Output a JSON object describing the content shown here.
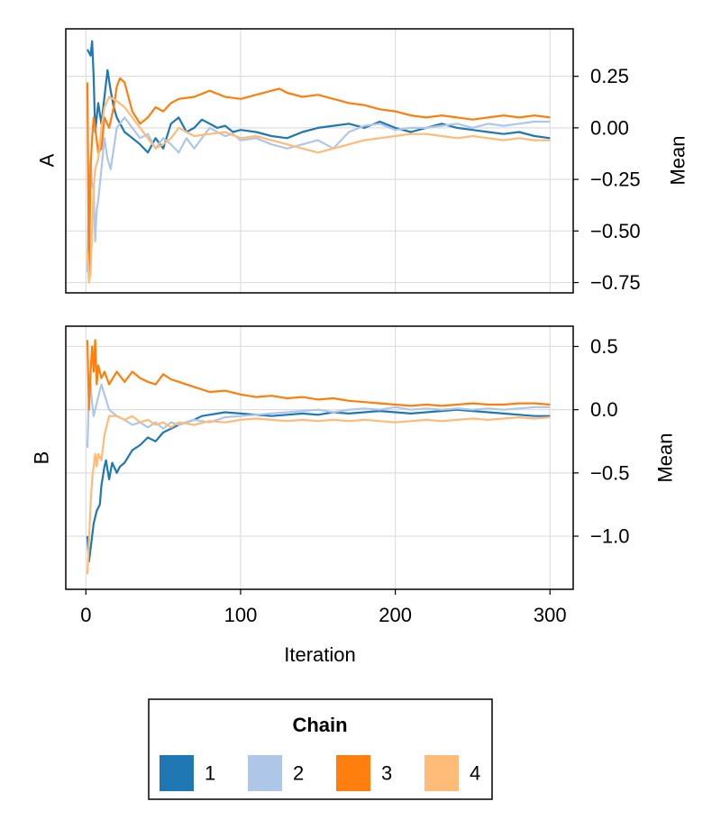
{
  "chart_data": {
    "type": "line",
    "xlabel": "Iteration",
    "x_ticks": [
      0,
      100,
      200,
      300
    ],
    "xlim": [
      -13,
      315
    ],
    "legend": {
      "title": "Chain",
      "placement": "bottom",
      "entries": [
        "1",
        "2",
        "3",
        "4"
      ]
    },
    "series_colors": {
      "1": "#1f77b4",
      "2": "#aec7e8",
      "3": "#ff7f0e",
      "4": "#ffbb78"
    },
    "grid": true,
    "panels": [
      {
        "panel_label": "A",
        "ylabel": "Mean",
        "ylim": [
          -0.8,
          0.48
        ],
        "y_ticks": [
          0.25,
          0.0,
          -0.25,
          -0.5,
          -0.75
        ],
        "y_tick_labels": [
          "0.25",
          "0.00",
          "−0.25",
          "−0.50",
          "−0.75"
        ],
        "series": [
          {
            "name": "1",
            "x": [
              1,
              3,
              4,
              5,
              6,
              8,
              10,
              12,
              14,
              16,
              18,
              20,
              25,
              30,
              35,
              40,
              45,
              50,
              55,
              60,
              65,
              70,
              75,
              80,
              85,
              90,
              95,
              100,
              110,
              120,
              130,
              140,
              150,
              160,
              170,
              180,
              190,
              200,
              210,
              220,
              230,
              240,
              250,
              260,
              270,
              280,
              290,
              300
            ],
            "y": [
              0.38,
              0.35,
              0.42,
              0.25,
              -0.02,
              0.12,
              0.02,
              0.15,
              0.28,
              0.18,
              0.1,
              0.05,
              -0.02,
              -0.05,
              -0.08,
              -0.12,
              -0.05,
              -0.1,
              0.02,
              0.05,
              -0.02,
              0.0,
              0.04,
              0.02,
              0.0,
              0.01,
              -0.02,
              -0.01,
              -0.02,
              -0.04,
              -0.05,
              -0.02,
              0.0,
              0.01,
              0.02,
              0.0,
              0.03,
              0.0,
              -0.02,
              0.0,
              0.02,
              0.0,
              -0.01,
              -0.02,
              -0.03,
              -0.02,
              -0.04,
              -0.05
            ]
          },
          {
            "name": "2",
            "x": [
              1,
              2,
              3,
              4,
              5,
              6,
              7,
              8,
              10,
              12,
              14,
              16,
              18,
              20,
              25,
              30,
              35,
              40,
              45,
              50,
              55,
              60,
              65,
              70,
              75,
              80,
              85,
              90,
              95,
              100,
              110,
              120,
              130,
              140,
              150,
              160,
              170,
              180,
              190,
              200,
              210,
              220,
              230,
              240,
              250,
              260,
              270,
              280,
              290,
              300
            ],
            "y": [
              -0.7,
              -0.3,
              -0.15,
              -0.28,
              -0.3,
              -0.55,
              -0.4,
              -0.35,
              -0.2,
              -0.05,
              -0.15,
              -0.2,
              -0.1,
              0.0,
              0.05,
              0.0,
              -0.05,
              -0.03,
              -0.1,
              -0.05,
              -0.08,
              -0.12,
              -0.05,
              -0.1,
              -0.05,
              0.0,
              -0.02,
              -0.04,
              -0.03,
              -0.06,
              -0.05,
              -0.08,
              -0.1,
              -0.08,
              -0.06,
              -0.1,
              -0.02,
              0.01,
              0.02,
              -0.01,
              0.0,
              0.0,
              0.01,
              0.02,
              0.0,
              0.02,
              0.01,
              0.02,
              0.03,
              0.03
            ]
          },
          {
            "name": "3",
            "x": [
              1,
              2,
              3,
              4,
              5,
              6,
              8,
              10,
              12,
              15,
              18,
              20,
              22,
              25,
              30,
              35,
              40,
              45,
              50,
              55,
              60,
              70,
              80,
              90,
              100,
              110,
              120,
              125,
              130,
              140,
              150,
              160,
              170,
              180,
              190,
              200,
              210,
              220,
              230,
              240,
              250,
              260,
              270,
              280,
              290,
              300
            ],
            "y": [
              0.22,
              -0.72,
              -0.2,
              -0.05,
              0.05,
              0.0,
              -0.12,
              -0.1,
              0.05,
              0.0,
              0.1,
              0.2,
              0.24,
              0.22,
              0.08,
              0.02,
              0.05,
              0.1,
              0.08,
              0.12,
              0.14,
              0.15,
              0.18,
              0.15,
              0.14,
              0.16,
              0.18,
              0.19,
              0.17,
              0.15,
              0.16,
              0.14,
              0.12,
              0.11,
              0.09,
              0.08,
              0.06,
              0.05,
              0.06,
              0.05,
              0.04,
              0.05,
              0.06,
              0.05,
              0.06,
              0.05
            ]
          },
          {
            "name": "4",
            "x": [
              1,
              2,
              3,
              4,
              5,
              6,
              8,
              10,
              12,
              15,
              20,
              25,
              30,
              35,
              40,
              45,
              50,
              55,
              60,
              65,
              70,
              80,
              90,
              100,
              110,
              120,
              130,
              140,
              150,
              160,
              170,
              180,
              190,
              200,
              210,
              220,
              230,
              240,
              250,
              260,
              270,
              280,
              290,
              300
            ],
            "y": [
              -0.6,
              -0.75,
              -0.7,
              -0.5,
              -0.3,
              -0.2,
              -0.15,
              0.0,
              0.1,
              0.15,
              0.13,
              0.1,
              0.05,
              0.0,
              -0.05,
              -0.1,
              -0.08,
              -0.05,
              0.0,
              -0.02,
              -0.04,
              -0.03,
              -0.02,
              -0.05,
              -0.04,
              -0.06,
              -0.08,
              -0.1,
              -0.12,
              -0.1,
              -0.08,
              -0.06,
              -0.05,
              -0.04,
              -0.03,
              -0.03,
              -0.04,
              -0.05,
              -0.04,
              -0.05,
              -0.06,
              -0.05,
              -0.06,
              -0.06
            ]
          }
        ]
      },
      {
        "panel_label": "B",
        "ylabel": "Mean",
        "ylim": [
          -1.42,
          0.66
        ],
        "y_ticks": [
          0.5,
          0.0,
          -0.5,
          -1.0
        ],
        "y_tick_labels": [
          "0.5",
          "0.0",
          "−0.5",
          "−1.0"
        ],
        "series": [
          {
            "name": "1",
            "x": [
              1,
              2,
              3,
              5,
              7,
              9,
              10,
              12,
              13,
              15,
              17,
              20,
              22,
              25,
              30,
              35,
              40,
              45,
              50,
              55,
              60,
              65,
              70,
              75,
              80,
              90,
              100,
              110,
              120,
              130,
              140,
              150,
              160,
              170,
              180,
              190,
              200,
              210,
              220,
              230,
              240,
              250,
              260,
              270,
              280,
              290,
              300
            ],
            "y": [
              -1.0,
              -1.2,
              -1.1,
              -0.9,
              -0.8,
              -0.75,
              -0.6,
              -0.45,
              -0.4,
              -0.55,
              -0.42,
              -0.5,
              -0.45,
              -0.42,
              -0.32,
              -0.28,
              -0.22,
              -0.25,
              -0.18,
              -0.15,
              -0.12,
              -0.1,
              -0.08,
              -0.05,
              -0.04,
              -0.02,
              -0.03,
              -0.04,
              -0.05,
              -0.04,
              -0.03,
              -0.04,
              -0.02,
              -0.03,
              -0.02,
              -0.01,
              -0.02,
              -0.03,
              -0.02,
              -0.01,
              0.0,
              -0.01,
              -0.02,
              -0.03,
              -0.04,
              -0.05,
              -0.05
            ]
          },
          {
            "name": "2",
            "x": [
              1,
              2,
              3,
              4,
              5,
              6,
              8,
              10,
              12,
              15,
              20,
              25,
              30,
              35,
              40,
              45,
              50,
              55,
              60,
              70,
              80,
              90,
              100,
              110,
              120,
              130,
              140,
              150,
              160,
              170,
              180,
              190,
              200,
              210,
              220,
              230,
              240,
              250,
              260,
              270,
              280,
              290,
              300
            ],
            "y": [
              -0.3,
              0.1,
              0.2,
              0.05,
              -0.05,
              0.0,
              0.1,
              0.2,
              0.12,
              0.0,
              -0.05,
              -0.08,
              -0.12,
              -0.1,
              -0.14,
              -0.1,
              -0.15,
              -0.1,
              -0.12,
              -0.08,
              -0.1,
              -0.06,
              -0.05,
              -0.04,
              -0.03,
              -0.02,
              -0.01,
              0.0,
              -0.02,
              0.0,
              0.01,
              0.0,
              0.02,
              0.0,
              0.01,
              0.0,
              0.01,
              0.0,
              0.01,
              0.0,
              0.01,
              0.02,
              0.02
            ]
          },
          {
            "name": "3",
            "x": [
              1,
              2,
              3,
              4,
              5,
              6,
              7,
              8,
              10,
              12,
              15,
              20,
              25,
              30,
              35,
              40,
              45,
              50,
              55,
              60,
              70,
              80,
              90,
              100,
              110,
              120,
              130,
              140,
              150,
              160,
              170,
              180,
              190,
              200,
              210,
              220,
              230,
              240,
              250,
              260,
              270,
              280,
              290,
              300
            ],
            "y": [
              0.55,
              0.0,
              0.3,
              0.5,
              0.3,
              0.55,
              0.2,
              0.35,
              0.25,
              0.3,
              0.2,
              0.3,
              0.22,
              0.3,
              0.25,
              0.22,
              0.2,
              0.28,
              0.24,
              0.22,
              0.18,
              0.14,
              0.15,
              0.12,
              0.1,
              0.11,
              0.09,
              0.1,
              0.08,
              0.09,
              0.07,
              0.06,
              0.05,
              0.04,
              0.03,
              0.04,
              0.03,
              0.04,
              0.05,
              0.04,
              0.04,
              0.05,
              0.05,
              0.04
            ]
          },
          {
            "name": "4",
            "x": [
              1,
              2,
              3,
              4,
              5,
              6,
              7,
              8,
              10,
              12,
              15,
              20,
              25,
              30,
              35,
              40,
              45,
              50,
              55,
              60,
              70,
              80,
              90,
              100,
              110,
              120,
              130,
              140,
              150,
              160,
              170,
              180,
              190,
              200,
              210,
              220,
              230,
              240,
              250,
              260,
              270,
              280,
              290,
              300
            ],
            "y": [
              -1.3,
              -1.05,
              -0.75,
              -0.55,
              -0.45,
              -0.35,
              -0.45,
              -0.35,
              -0.4,
              -0.2,
              -0.05,
              -0.05,
              -0.08,
              -0.05,
              -0.1,
              -0.08,
              -0.12,
              -0.1,
              -0.14,
              -0.1,
              -0.12,
              -0.09,
              -0.1,
              -0.08,
              -0.07,
              -0.08,
              -0.09,
              -0.08,
              -0.09,
              -0.08,
              -0.09,
              -0.08,
              -0.09,
              -0.1,
              -0.09,
              -0.08,
              -0.09,
              -0.08,
              -0.07,
              -0.08,
              -0.07,
              -0.06,
              -0.07,
              -0.06
            ]
          }
        ]
      }
    ]
  }
}
